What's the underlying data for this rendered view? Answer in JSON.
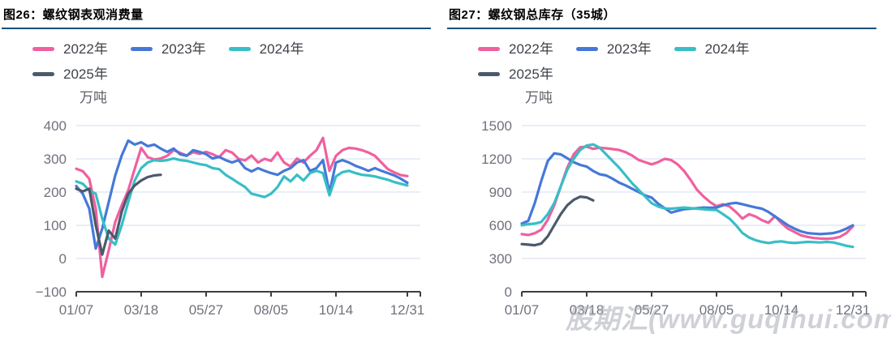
{
  "watermark": "股期汇(www.guqihui.com)",
  "styles": {
    "divider_color": "#15517D",
    "grid_color": "#E2E7F3",
    "axis_color": "#3A3F45",
    "tick_label_color": "#70727C",
    "unit_label_color": "#5C5F66",
    "legend_text_color": "#3E4349",
    "watermark_color": "#A7ABB6",
    "series_colors": {
      "2022": "#F0609E",
      "2023": "#4678D8",
      "2024": "#38BEC6",
      "2025": "#4B5A6B"
    }
  },
  "chart_data": [
    {
      "type": "line",
      "title": "图26：螺纹钢表观消费量",
      "ylabel": "万吨",
      "ylim": [
        -100,
        400
      ],
      "y_ticks": [
        400,
        300,
        200,
        100,
        0,
        -100
      ],
      "x_tick_labels": [
        "01/07",
        "03/18",
        "05/27",
        "08/05",
        "10/14",
        "12/31"
      ],
      "x_tick_indices": [
        0,
        10,
        20,
        30,
        40,
        51
      ],
      "grid": true,
      "legend_position": "top-left",
      "series": [
        {
          "name": "2022年",
          "color": "#F0609E",
          "values": [
            270,
            263,
            240,
            150,
            -55,
            25,
            110,
            160,
            205,
            270,
            333,
            305,
            298,
            301,
            309,
            326,
            318,
            310,
            320,
            315,
            321,
            314,
            305,
            326,
            319,
            300,
            295,
            310,
            289,
            300,
            294,
            319,
            289,
            277,
            301,
            289,
            309,
            326,
            363,
            264,
            309,
            326,
            333,
            331,
            326,
            319,
            309,
            289,
            269,
            259,
            251,
            248
          ]
        },
        {
          "name": "2023年",
          "color": "#4678D8",
          "values": [
            218,
            195,
            150,
            30,
            90,
            170,
            250,
            310,
            355,
            343,
            350,
            338,
            343,
            331,
            321,
            331,
            314,
            309,
            326,
            321,
            314,
            301,
            306,
            296,
            289,
            296,
            272,
            262,
            272,
            264,
            257,
            252,
            264,
            272,
            289,
            296,
            264,
            272,
            296,
            198,
            289,
            296,
            289,
            279,
            272,
            264,
            272,
            264,
            257,
            250,
            240,
            228
          ]
        },
        {
          "name": "2024年",
          "color": "#38BEC6",
          "values": [
            232,
            225,
            205,
            195,
            120,
            60,
            42,
            100,
            170,
            235,
            272,
            289,
            296,
            294,
            296,
            301,
            296,
            294,
            289,
            284,
            281,
            272,
            269,
            252,
            240,
            227,
            215,
            195,
            190,
            185,
            195,
            215,
            247,
            232,
            252,
            235,
            257,
            264,
            257,
            190,
            247,
            260,
            264,
            257,
            252,
            250,
            247,
            242,
            237,
            230,
            225,
            220
          ]
        },
        {
          "name": "2025年",
          "color": "#4B5A6B",
          "values": [
            210,
            202,
            210,
            100,
            12,
            84,
            60,
            141,
            195,
            220,
            235,
            245,
            250,
            252
          ]
        }
      ]
    },
    {
      "type": "line",
      "title": "图27：螺纹钢总库存（35城）",
      "ylabel": "万吨",
      "ylim": [
        0,
        1500
      ],
      "y_ticks": [
        1500,
        1200,
        900,
        600,
        300,
        0
      ],
      "x_tick_labels": [
        "01/07",
        "03/18",
        "05/27",
        "08/05",
        "10/14",
        "12/31"
      ],
      "x_tick_indices": [
        0,
        10,
        20,
        30,
        40,
        51
      ],
      "grid": true,
      "legend_position": "top-left",
      "series": [
        {
          "name": "2022年",
          "color": "#F0609E",
          "values": [
            520,
            512,
            528,
            560,
            650,
            780,
            950,
            1120,
            1240,
            1305,
            1310,
            1290,
            1300,
            1295,
            1288,
            1280,
            1260,
            1230,
            1190,
            1170,
            1150,
            1170,
            1200,
            1190,
            1150,
            1090,
            1010,
            920,
            860,
            810,
            772,
            790,
            770,
            720,
            660,
            700,
            680,
            645,
            623,
            683,
            620,
            570,
            540,
            510,
            495,
            485,
            480,
            478,
            482,
            495,
            530,
            590
          ]
        },
        {
          "name": "2023年",
          "color": "#4678D8",
          "values": [
            615,
            640,
            800,
            1000,
            1180,
            1250,
            1240,
            1205,
            1170,
            1145,
            1130,
            1090,
            1060,
            1050,
            1020,
            985,
            960,
            930,
            900,
            870,
            850,
            795,
            755,
            715,
            730,
            745,
            750,
            755,
            760,
            758,
            760,
            780,
            795,
            803,
            790,
            775,
            762,
            750,
            720,
            680,
            640,
            600,
            570,
            545,
            530,
            525,
            520,
            525,
            530,
            545,
            570,
            600
          ]
        },
        {
          "name": "2024年",
          "color": "#38BEC6",
          "values": [
            600,
            610,
            615,
            630,
            700,
            800,
            950,
            1100,
            1200,
            1280,
            1320,
            1330,
            1300,
            1240,
            1180,
            1120,
            1050,
            980,
            920,
            860,
            800,
            770,
            752,
            750,
            755,
            760,
            755,
            750,
            745,
            740,
            738,
            700,
            660,
            600,
            530,
            490,
            465,
            450,
            440,
            450,
            455,
            445,
            440,
            445,
            450,
            448,
            445,
            450,
            445,
            430,
            415,
            405
          ]
        },
        {
          "name": "2025年",
          "color": "#4B5A6B",
          "values": [
            430,
            425,
            420,
            435,
            500,
            600,
            700,
            780,
            830,
            858,
            852,
            825
          ]
        }
      ]
    }
  ]
}
